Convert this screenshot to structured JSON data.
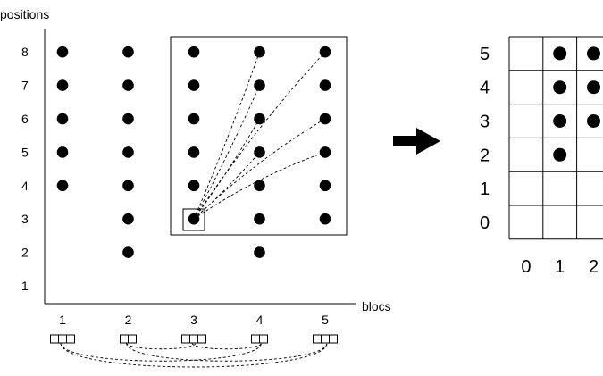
{
  "left_plot": {
    "y_axis_label": "positions",
    "x_axis_label": "blocs",
    "y_ticks": [
      "1",
      "2",
      "3",
      "4",
      "5",
      "6",
      "7",
      "8"
    ],
    "x_ticks": [
      "1",
      "2",
      "3",
      "4",
      "5"
    ],
    "columns": [
      {
        "bloc": 1,
        "positions": [
          4,
          5,
          6,
          7,
          8
        ]
      },
      {
        "bloc": 2,
        "positions": [
          2,
          3,
          4,
          5,
          6,
          7,
          8
        ]
      },
      {
        "bloc": 3,
        "positions": [
          3,
          4,
          5,
          6,
          7,
          8
        ]
      },
      {
        "bloc": 4,
        "positions": [
          2,
          3,
          4,
          5,
          6,
          7,
          8
        ]
      },
      {
        "bloc": 5,
        "positions": [
          3,
          4,
          5,
          6,
          7,
          8
        ]
      }
    ],
    "highlight_block": {
      "blocs": [
        3,
        5
      ],
      "positions": [
        3,
        8
      ]
    },
    "highlight_point": {
      "bloc": 3,
      "position": 3
    },
    "dependency_targets": [
      [
        4,
        8
      ],
      [
        5,
        8
      ],
      [
        4,
        7
      ],
      [
        5,
        6
      ],
      [
        4,
        6
      ],
      [
        5,
        5
      ],
      [
        4,
        5
      ]
    ],
    "bloc_cell_counts": [
      3,
      2,
      3,
      2,
      3
    ],
    "bloc_links": [
      [
        1,
        4
      ],
      [
        1,
        5
      ],
      [
        2,
        3
      ],
      [
        2,
        5
      ],
      [
        3,
        4
      ]
    ]
  },
  "right_grid": {
    "row_labels": [
      "5",
      "4",
      "3",
      "2",
      "1",
      "0"
    ],
    "col_labels": [
      "0",
      "1",
      "2"
    ],
    "filled_cells": [
      [
        1,
        2
      ],
      [
        1,
        3
      ],
      [
        1,
        4
      ],
      [
        1,
        5
      ],
      [
        2,
        3
      ],
      [
        2,
        4
      ],
      [
        2,
        5
      ]
    ]
  },
  "colors": {
    "ink": "#000000",
    "background": "#ffffff"
  }
}
